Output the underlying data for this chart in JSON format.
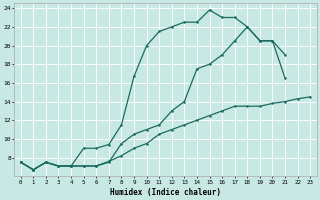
{
  "xlabel": "Humidex (Indice chaleur)",
  "xlim": [
    -0.5,
    23.5
  ],
  "ylim": [
    6,
    24.5
  ],
  "xticks": [
    0,
    1,
    2,
    3,
    4,
    5,
    6,
    7,
    8,
    9,
    10,
    11,
    12,
    13,
    14,
    15,
    16,
    17,
    18,
    19,
    20,
    21,
    22,
    23
  ],
  "yticks": [
    8,
    10,
    12,
    14,
    16,
    18,
    20,
    22,
    24
  ],
  "background_color": "#c8e8e4",
  "line_color": "#1a6b60",
  "grid_color": "#ffffff",
  "curve1_x": [
    0,
    1,
    2,
    3,
    4,
    5,
    6,
    7,
    8,
    9,
    10,
    11,
    12,
    13,
    14,
    15,
    16,
    17,
    18,
    19,
    20,
    21
  ],
  "curve1_y": [
    7.5,
    6.7,
    7.5,
    7.1,
    7.1,
    9.0,
    9.0,
    9.4,
    11.5,
    16.7,
    20.0,
    21.5,
    22.0,
    22.5,
    22.5,
    23.8,
    23.0,
    23.0,
    22.0,
    20.5,
    20.5,
    19.0
  ],
  "curve2_x": [
    0,
    1,
    2,
    3,
    4,
    5,
    6,
    7,
    8,
    9,
    10,
    11,
    12,
    13,
    14,
    15,
    16,
    17,
    18,
    19,
    20,
    21
  ],
  "curve2_y": [
    7.5,
    6.7,
    7.5,
    7.1,
    7.1,
    7.1,
    7.1,
    7.5,
    9.5,
    10.5,
    11.0,
    11.5,
    13.0,
    14.0,
    17.5,
    18.0,
    19.0,
    20.5,
    22.0,
    20.5,
    20.5,
    16.5
  ],
  "curve3_x": [
    0,
    1,
    2,
    3,
    4,
    5,
    6,
    7,
    8,
    9,
    10,
    11,
    12,
    13,
    14,
    15,
    16,
    17,
    18,
    19,
    20,
    21,
    22,
    23
  ],
  "curve3_y": [
    7.5,
    6.7,
    7.5,
    7.1,
    7.1,
    7.1,
    7.1,
    7.6,
    8.2,
    9.0,
    9.5,
    10.5,
    11.0,
    11.5,
    12.0,
    12.5,
    13.0,
    13.5,
    13.5,
    13.5,
    13.8,
    14.0,
    14.3,
    14.5
  ]
}
